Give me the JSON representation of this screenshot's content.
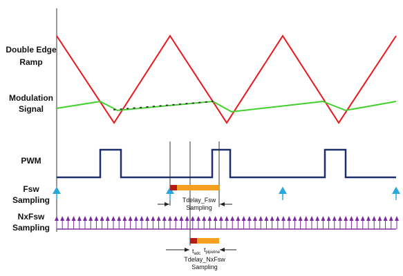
{
  "signals": [
    {
      "lines": [
        "Double Edge",
        "Ramp"
      ]
    },
    {
      "lines": [
        "Modulation",
        "Signal"
      ]
    },
    {
      "lines": [
        "PWM"
      ]
    },
    {
      "lines": [
        "Fsw",
        "Sampling"
      ]
    },
    {
      "lines": [
        "NxFsw",
        "Sampling"
      ]
    }
  ],
  "annotations": {
    "fsw_delay": [
      "Tdelay_Fsw",
      "Sampling"
    ],
    "adc": {
      "symbol": "t",
      "subscript": "adc"
    },
    "pipeline": {
      "symbol": "t",
      "subscript": "pipeline"
    },
    "nxfsw_delay": [
      "Tdelay_NxFsw",
      "Sampling"
    ]
  }
}
